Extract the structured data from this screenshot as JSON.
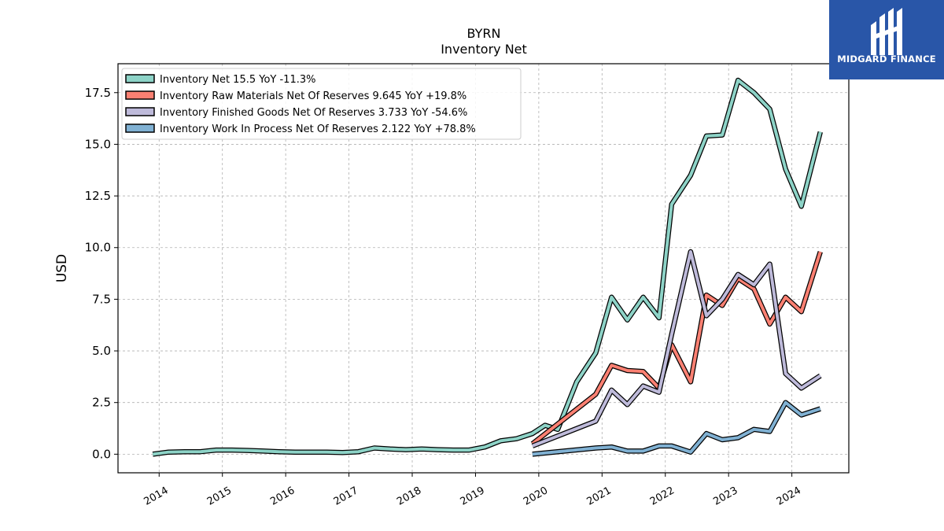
{
  "chart_data": {
    "type": "line",
    "title": "BYRN",
    "subtitle": "Inventory Net",
    "ylabel": "USD",
    "xlabel": "",
    "ylim": [
      -0.9,
      18.9
    ],
    "xlim": [
      2013.35,
      2024.9
    ],
    "yticks": [
      "0.0",
      "2.5",
      "5.0",
      "7.5",
      "10.0",
      "12.5",
      "15.0",
      "17.5"
    ],
    "ytick_values": [
      0,
      2.5,
      5,
      7.5,
      10,
      12.5,
      15,
      17.5
    ],
    "xticks": [
      "2014",
      "2015",
      "2016",
      "2017",
      "2018",
      "2019",
      "2020",
      "2021",
      "2022",
      "2023",
      "2024"
    ],
    "xtick_values": [
      2014,
      2015,
      2016,
      2017,
      2018,
      2019,
      2020,
      2021,
      2022,
      2023,
      2024
    ],
    "grid": true,
    "legend_position": "top-left",
    "series": [
      {
        "name": "Inventory Net  15.5 YoY -11.3%",
        "color": "#8dd3c7",
        "points": [
          [
            2013.9,
            0.0
          ],
          [
            2014.15,
            0.1
          ],
          [
            2014.4,
            0.12
          ],
          [
            2014.65,
            0.12
          ],
          [
            2014.9,
            0.2
          ],
          [
            2015.15,
            0.2
          ],
          [
            2015.4,
            0.18
          ],
          [
            2015.65,
            0.15
          ],
          [
            2015.9,
            0.12
          ],
          [
            2016.15,
            0.1
          ],
          [
            2016.4,
            0.1
          ],
          [
            2016.65,
            0.1
          ],
          [
            2016.9,
            0.08
          ],
          [
            2017.15,
            0.12
          ],
          [
            2017.4,
            0.3
          ],
          [
            2017.65,
            0.25
          ],
          [
            2017.9,
            0.22
          ],
          [
            2018.15,
            0.25
          ],
          [
            2018.4,
            0.22
          ],
          [
            2018.65,
            0.2
          ],
          [
            2018.9,
            0.2
          ],
          [
            2019.15,
            0.35
          ],
          [
            2019.4,
            0.65
          ],
          [
            2019.65,
            0.75
          ],
          [
            2019.9,
            1.0
          ],
          [
            2020.1,
            1.4
          ],
          [
            2020.3,
            1.2
          ],
          [
            2020.6,
            3.5
          ],
          [
            2020.9,
            4.9
          ],
          [
            2021.15,
            7.6
          ],
          [
            2021.4,
            6.5
          ],
          [
            2021.65,
            7.6
          ],
          [
            2021.9,
            6.6
          ],
          [
            2022.1,
            12.1
          ],
          [
            2022.4,
            13.5
          ],
          [
            2022.65,
            15.4
          ],
          [
            2022.9,
            15.45
          ],
          [
            2023.15,
            18.1
          ],
          [
            2023.4,
            17.5
          ],
          [
            2023.65,
            16.7
          ],
          [
            2023.9,
            13.8
          ],
          [
            2024.15,
            12.0
          ],
          [
            2024.45,
            15.6
          ]
        ]
      },
      {
        "name": "Inventory Raw Materials Net Of Reserves  9.645 YoY +19.8%",
        "color": "#fb8072",
        "points": [
          [
            2019.9,
            0.5
          ],
          [
            2020.9,
            2.9
          ],
          [
            2021.15,
            4.3
          ],
          [
            2021.4,
            4.05
          ],
          [
            2021.65,
            4.0
          ],
          [
            2021.9,
            3.2
          ],
          [
            2022.1,
            5.3
          ],
          [
            2022.4,
            3.5
          ],
          [
            2022.65,
            7.7
          ],
          [
            2022.9,
            7.2
          ],
          [
            2023.15,
            8.5
          ],
          [
            2023.4,
            8.0
          ],
          [
            2023.65,
            6.3
          ],
          [
            2023.9,
            7.6
          ],
          [
            2024.15,
            6.9
          ],
          [
            2024.45,
            9.8
          ]
        ]
      },
      {
        "name": "Inventory Finished Goods Net Of Reserves  3.733 YoY -54.6%",
        "color": "#bebada",
        "points": [
          [
            2019.9,
            0.4
          ],
          [
            2020.9,
            1.6
          ],
          [
            2021.15,
            3.1
          ],
          [
            2021.4,
            2.4
          ],
          [
            2021.65,
            3.3
          ],
          [
            2021.9,
            3.0
          ],
          [
            2022.1,
            5.8
          ],
          [
            2022.4,
            9.8
          ],
          [
            2022.65,
            6.7
          ],
          [
            2022.9,
            7.5
          ],
          [
            2023.15,
            8.7
          ],
          [
            2023.4,
            8.2
          ],
          [
            2023.65,
            9.2
          ],
          [
            2023.9,
            3.9
          ],
          [
            2024.15,
            3.2
          ],
          [
            2024.45,
            3.8
          ]
        ]
      },
      {
        "name": "Inventory Work In Process Net Of Reserves  2.122 YoY +78.8%",
        "color": "#80b1d3",
        "points": [
          [
            2019.9,
            0.0
          ],
          [
            2020.9,
            0.3
          ],
          [
            2021.15,
            0.35
          ],
          [
            2021.4,
            0.15
          ],
          [
            2021.65,
            0.15
          ],
          [
            2021.9,
            0.4
          ],
          [
            2022.1,
            0.4
          ],
          [
            2022.4,
            0.1
          ],
          [
            2022.65,
            1.0
          ],
          [
            2022.9,
            0.7
          ],
          [
            2023.15,
            0.8
          ],
          [
            2023.4,
            1.2
          ],
          [
            2023.65,
            1.1
          ],
          [
            2023.9,
            2.5
          ],
          [
            2024.15,
            1.9
          ],
          [
            2024.45,
            2.2
          ]
        ]
      }
    ]
  },
  "logo": {
    "text": "MIDGARD FINANCE",
    "background": "#2956a8",
    "icon": "midgard-finance-logo-icon"
  }
}
